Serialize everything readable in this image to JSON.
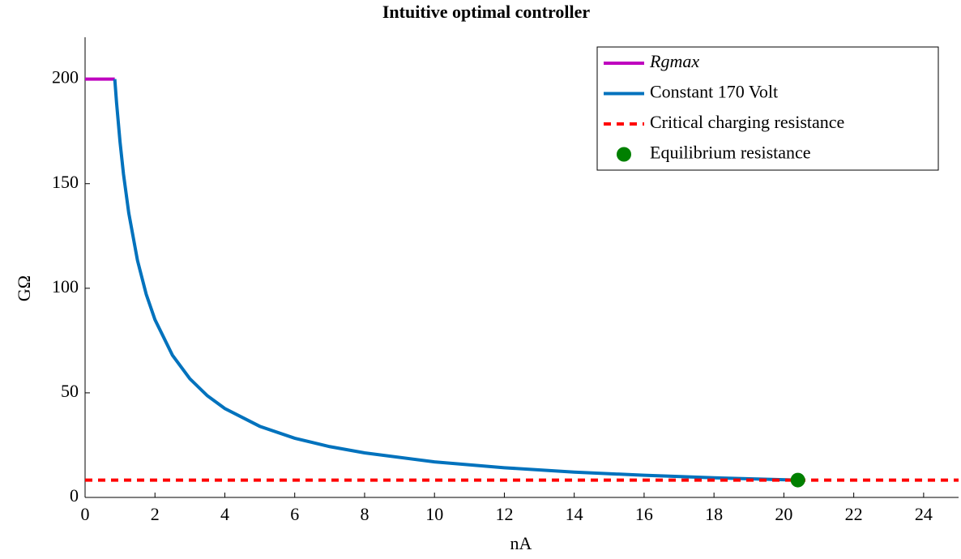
{
  "chart_data": {
    "type": "line",
    "title": "Intuitive optimal controller",
    "xlabel": "nA",
    "ylabel": "GΩ",
    "xlim": [
      0,
      25
    ],
    "xticks": [
      0,
      2,
      4,
      6,
      8,
      10,
      12,
      14,
      16,
      18,
      20,
      22,
      24
    ],
    "ylim": [
      0,
      220
    ],
    "yticks": [
      0,
      50,
      100,
      150,
      200
    ],
    "legend": "top-right",
    "series": [
      {
        "name": "Rgmax",
        "color": "#bf00bf",
        "x": [
          0,
          0.85
        ],
        "values": [
          200,
          200
        ]
      },
      {
        "name": "Constant 170 Volt",
        "color": "#0072bd",
        "x": [
          0.85,
          0.9,
          1,
          1.1,
          1.25,
          1.5,
          1.75,
          2,
          2.5,
          3,
          3.5,
          4,
          5,
          6,
          7,
          8,
          10,
          12,
          14,
          16,
          18,
          20.4
        ],
        "values": [
          200,
          188.9,
          170,
          154.5,
          136,
          113.3,
          97.1,
          85,
          68,
          56.7,
          48.6,
          42.5,
          34,
          28.3,
          24.3,
          21.3,
          17,
          14.2,
          12.1,
          10.6,
          9.4,
          8.3
        ]
      },
      {
        "name": "Critical charging resistance",
        "color": "#ff0000",
        "dashed": true,
        "x": [
          0,
          25
        ],
        "values": [
          8.3,
          8.3
        ]
      },
      {
        "name": "Equilibrium resistance",
        "color": "#008000",
        "marker": true,
        "x": [
          20.4
        ],
        "values": [
          8.3
        ]
      }
    ]
  }
}
